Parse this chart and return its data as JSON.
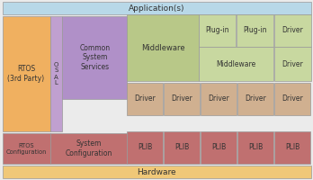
{
  "bg_color": "#ebebeb",
  "app_color": "#b8d8e8",
  "hardware_color": "#f0c878",
  "rtos_color": "#f0b060",
  "osal_color": "#c0a0d0",
  "css_color": "#b090c8",
  "middleware_large_color": "#b8c888",
  "plugin_color": "#c8d8a0",
  "driver_color": "#d0b090",
  "plib_color": "#c07070",
  "config_color": "#c07070",
  "border_color": "#999999",
  "text_color": "#333333",
  "title_app": "Application(s)",
  "title_hw": "Hardware",
  "title_rtos": "RTOS\n(3rd Party)",
  "title_osal": "O\nS\nA\nL",
  "title_css": "Common\nSystem\nServices",
  "title_middleware_large": "Middleware",
  "title_plugin1": "Plug-in",
  "title_plugin2": "Plug-in",
  "title_driver_right1": "Driver",
  "title_middleware_small": "Middleware",
  "title_driver_right2": "Driver",
  "title_drivers": [
    "Driver",
    "Driver",
    "Driver",
    "Driver",
    "Driver"
  ],
  "title_plibs": [
    "PLIB",
    "PLIB",
    "PLIB",
    "PLIB",
    "PLIB"
  ],
  "title_rtos_config": "RTOS\nConfiguration",
  "title_sys_config": "System\nConfiguration"
}
